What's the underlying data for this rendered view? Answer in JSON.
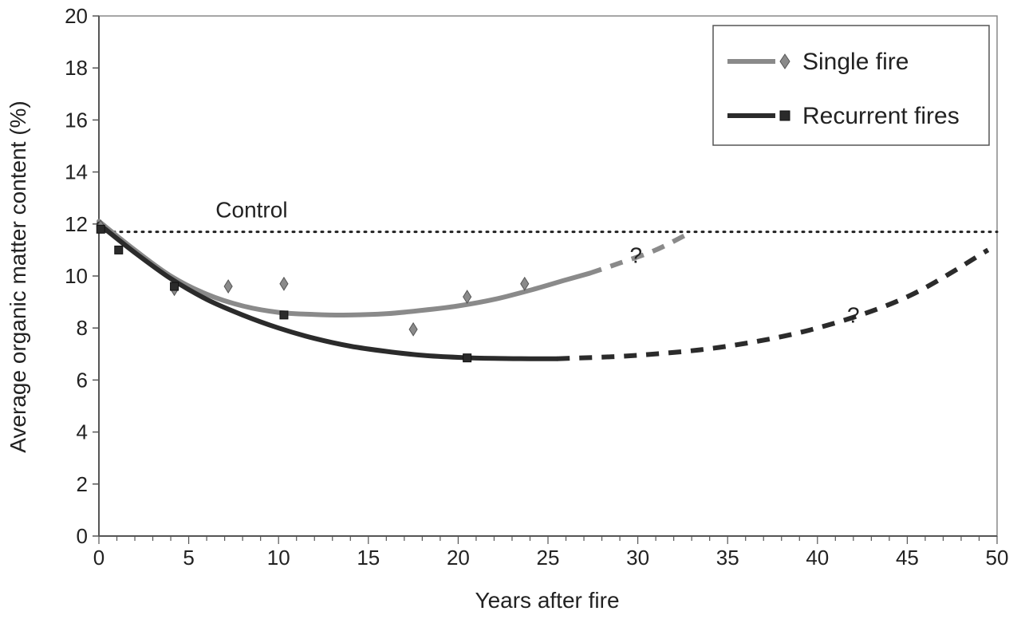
{
  "chart_data": {
    "type": "line",
    "xlabel": "Years after fire",
    "ylabel": "Average organic matter content (%)",
    "xlim": [
      0,
      50
    ],
    "ylim": [
      0,
      20
    ],
    "x_ticks": [
      0,
      5,
      10,
      15,
      20,
      25,
      30,
      35,
      40,
      45,
      50
    ],
    "y_ticks": [
      0,
      2,
      4,
      6,
      8,
      10,
      12,
      14,
      16,
      18,
      20
    ],
    "grid": false,
    "legend_position": "top-right",
    "control": {
      "label": "Control",
      "value": 11.7
    },
    "series": [
      {
        "name": "Single fire",
        "marker": "diamond",
        "color": "#8a8a8a",
        "points": [
          {
            "x": 0.1,
            "y": 11.9
          },
          {
            "x": 4.2,
            "y": 9.5
          },
          {
            "x": 7.2,
            "y": 9.6
          },
          {
            "x": 10.3,
            "y": 9.7
          },
          {
            "x": 17.5,
            "y": 7.95
          },
          {
            "x": 20.5,
            "y": 9.2
          },
          {
            "x": 23.7,
            "y": 9.7
          }
        ],
        "fit_solid": [
          {
            "x": 0,
            "y": 12.1
          },
          {
            "x": 2,
            "y": 11.0
          },
          {
            "x": 4,
            "y": 10.0
          },
          {
            "x": 6,
            "y": 9.3
          },
          {
            "x": 8,
            "y": 8.85
          },
          {
            "x": 10,
            "y": 8.6
          },
          {
            "x": 12,
            "y": 8.52
          },
          {
            "x": 14,
            "y": 8.5
          },
          {
            "x": 16,
            "y": 8.55
          },
          {
            "x": 18,
            "y": 8.68
          },
          {
            "x": 20,
            "y": 8.85
          },
          {
            "x": 22,
            "y": 9.1
          },
          {
            "x": 24,
            "y": 9.45
          },
          {
            "x": 26,
            "y": 9.85
          },
          {
            "x": 27.3,
            "y": 10.1
          }
        ],
        "fit_dashed": [
          {
            "x": 27.3,
            "y": 10.1
          },
          {
            "x": 29,
            "y": 10.5
          },
          {
            "x": 31,
            "y": 11.0
          },
          {
            "x": 33,
            "y": 11.7
          }
        ],
        "question_label": "?",
        "question_at": {
          "x": 29.9,
          "y": 10.5
        }
      },
      {
        "name": "Recurrent fires",
        "marker": "square",
        "color": "#2b2b2b",
        "points": [
          {
            "x": 0.1,
            "y": 11.8
          },
          {
            "x": 1.1,
            "y": 11.0
          },
          {
            "x": 4.2,
            "y": 9.6
          },
          {
            "x": 10.3,
            "y": 8.5
          },
          {
            "x": 20.5,
            "y": 6.85
          }
        ],
        "fit_solid": [
          {
            "x": 0,
            "y": 12.0
          },
          {
            "x": 2,
            "y": 10.9
          },
          {
            "x": 4,
            "y": 9.9
          },
          {
            "x": 6,
            "y": 9.1
          },
          {
            "x": 8,
            "y": 8.5
          },
          {
            "x": 10,
            "y": 8.0
          },
          {
            "x": 12,
            "y": 7.6
          },
          {
            "x": 14,
            "y": 7.3
          },
          {
            "x": 16,
            "y": 7.1
          },
          {
            "x": 18,
            "y": 6.95
          },
          {
            "x": 20,
            "y": 6.87
          },
          {
            "x": 22,
            "y": 6.83
          },
          {
            "x": 24,
            "y": 6.82
          },
          {
            "x": 25.5,
            "y": 6.82
          }
        ],
        "fit_dashed": [
          {
            "x": 25.5,
            "y": 6.82
          },
          {
            "x": 30,
            "y": 6.95
          },
          {
            "x": 35,
            "y": 7.3
          },
          {
            "x": 40,
            "y": 8.0
          },
          {
            "x": 45,
            "y": 9.2
          },
          {
            "x": 49.5,
            "y": 11.0
          }
        ],
        "question_label": "?",
        "question_at": {
          "x": 42.0,
          "y": 8.2
        }
      }
    ]
  }
}
